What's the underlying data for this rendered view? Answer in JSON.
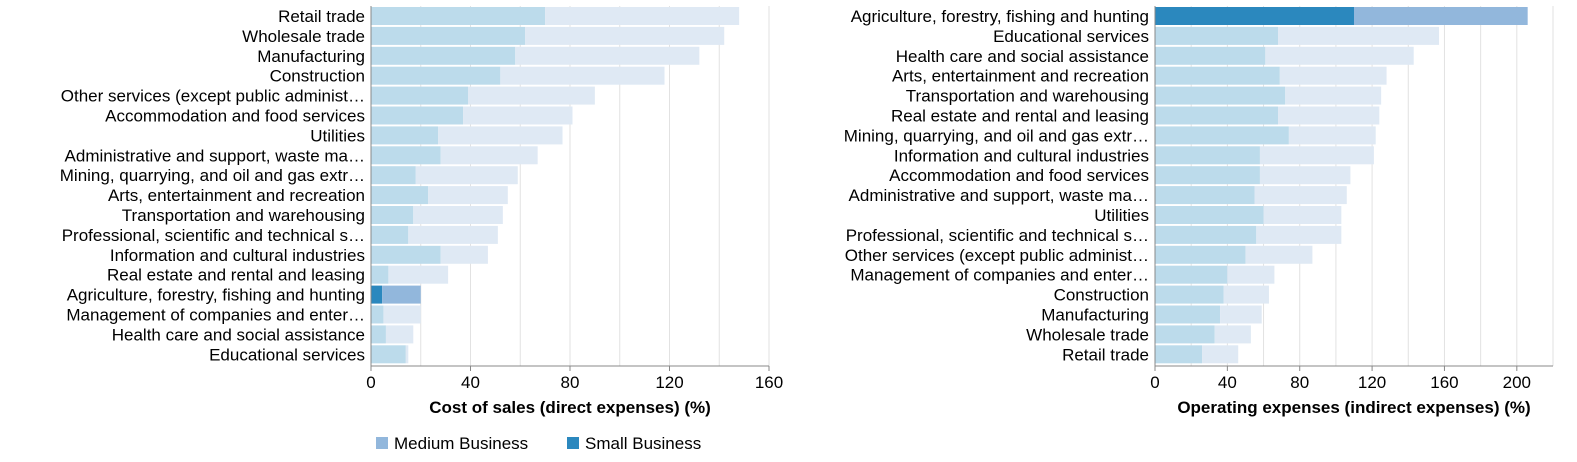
{
  "colors": {
    "highlight_medium": "#92b7dc",
    "highlight_small": "#2b88be",
    "faded_medium": "#dfe9f4",
    "faded_small": "#bcdbeb",
    "grid": "#e2e2e2",
    "axis": "#888888"
  },
  "legend": {
    "items": [
      {
        "label": "Medium Business",
        "color_key": "highlight_medium"
      },
      {
        "label": "Small Business",
        "color_key": "highlight_small"
      }
    ]
  },
  "chart_data": [
    {
      "type": "bar",
      "orientation": "horizontal",
      "stacked": true,
      "xlabel": "Cost of sales (direct expenses) (%)",
      "xlim": [
        0,
        160
      ],
      "xticks": [
        0,
        40,
        80,
        120,
        160
      ],
      "highlighted_category": "Agriculture, forestry, fishing and hunting",
      "categories": [
        "Retail trade",
        "Wholesale trade",
        "Manufacturing",
        "Construction",
        "Other services (except public administ…",
        "Accommodation and food services",
        "Utilities",
        "Administrative and support, waste ma…",
        "Mining, quarrying, and oil and gas extr…",
        "Arts, entertainment and recreation",
        "Transportation and warehousing",
        "Professional, scientific and technical s…",
        "Information and cultural industries",
        "Real estate and rental and leasing",
        "Agriculture, forestry, fishing and hunting",
        "Management of companies and enter…",
        "Health care and social assistance",
        "Educational services"
      ],
      "series": [
        {
          "name": "Small Business",
          "values": [
            70,
            62,
            58,
            52,
            39,
            37,
            27,
            28,
            18,
            23,
            17,
            15,
            28,
            7,
            4.5,
            5,
            6,
            14
          ]
        },
        {
          "name": "Medium Business",
          "values": [
            78,
            80,
            74,
            66,
            51,
            44,
            50,
            39,
            41,
            32,
            36,
            36,
            19,
            24,
            15.5,
            15,
            11,
            1
          ]
        }
      ]
    },
    {
      "type": "bar",
      "orientation": "horizontal",
      "stacked": true,
      "xlabel": "Operating expenses (indirect expenses) (%)",
      "xlim": [
        0,
        220
      ],
      "xticks": [
        0,
        40,
        80,
        120,
        160,
        200
      ],
      "highlighted_category": "Agriculture, forestry, fishing and hunting",
      "categories": [
        "Agriculture, forestry, fishing and hunting",
        "Educational services",
        "Health care and social assistance",
        "Arts, entertainment and recreation",
        "Transportation and warehousing",
        "Real estate and rental and leasing",
        "Mining, quarrying, and oil and gas extr…",
        "Information and cultural industries",
        "Accommodation and food services",
        "Administrative and support, waste ma…",
        "Utilities",
        "Professional, scientific and technical s…",
        "Other services (except public administ…",
        "Management of companies and enter…",
        "Construction",
        "Manufacturing",
        "Wholesale trade",
        "Retail trade"
      ],
      "series": [
        {
          "name": "Small Business",
          "values": [
            110,
            68,
            61,
            69,
            72,
            68,
            74,
            58,
            58,
            55,
            60,
            56,
            50,
            40,
            38,
            36,
            33,
            26
          ]
        },
        {
          "name": "Medium Business",
          "values": [
            96,
            89,
            82,
            59,
            53,
            56,
            48,
            63,
            50,
            51,
            43,
            47,
            37,
            26,
            25,
            23,
            20,
            20
          ]
        }
      ]
    }
  ]
}
